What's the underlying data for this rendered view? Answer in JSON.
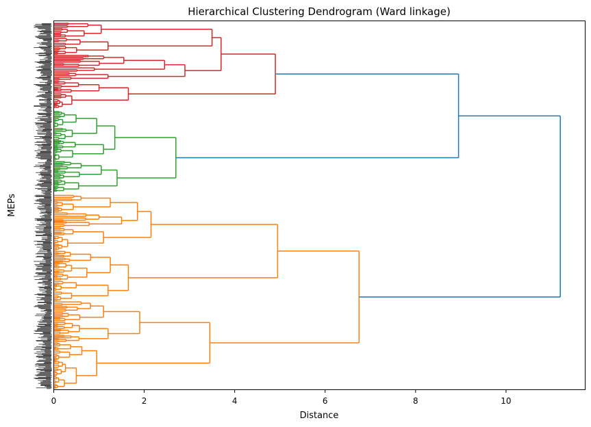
{
  "chart_data": {
    "type": "dendrogram",
    "title": "Hierarchical Clustering Dendrogram (Ward linkage)",
    "xlabel": "Distance",
    "ylabel": "MEPs",
    "xlim": [
      0,
      11.75
    ],
    "xticks": [
      0,
      2,
      4,
      6,
      8,
      10
    ],
    "orientation": "left",
    "leaf_label_density": "dense (unreadable)",
    "colors": {
      "cluster_red": "#d62728",
      "cluster_green": "#2ca02c",
      "cluster_orange": "#ff7f0e",
      "above_threshold": "#1f77b4"
    },
    "top_links": [
      {
        "distance": 11.2,
        "color": "above_threshold",
        "joins": [
          "red+green",
          "orange"
        ]
      },
      {
        "distance": 8.95,
        "color": "above_threshold",
        "joins": [
          "red",
          "green"
        ]
      },
      {
        "distance": 6.75,
        "color": "cluster_orange",
        "joins": [
          "orange-upper",
          "orange-lower"
        ]
      },
      {
        "distance": 4.95,
        "color": "cluster_orange",
        "joins": [
          "orange-upper-a",
          "orange-upper-b"
        ]
      },
      {
        "distance": 4.9,
        "color": "cluster_red",
        "joins": [
          "red-upper",
          "red-lower"
        ]
      },
      {
        "distance": 3.7,
        "color": "cluster_red",
        "joins": [
          "red-upper-a",
          "red-upper-b"
        ]
      },
      {
        "distance": 3.45,
        "color": "cluster_orange",
        "joins": [
          "orange-lower-a",
          "orange-lower-b"
        ]
      },
      {
        "distance": 2.7,
        "color": "cluster_green",
        "joins": [
          "green-a",
          "green-b"
        ]
      }
    ]
  }
}
